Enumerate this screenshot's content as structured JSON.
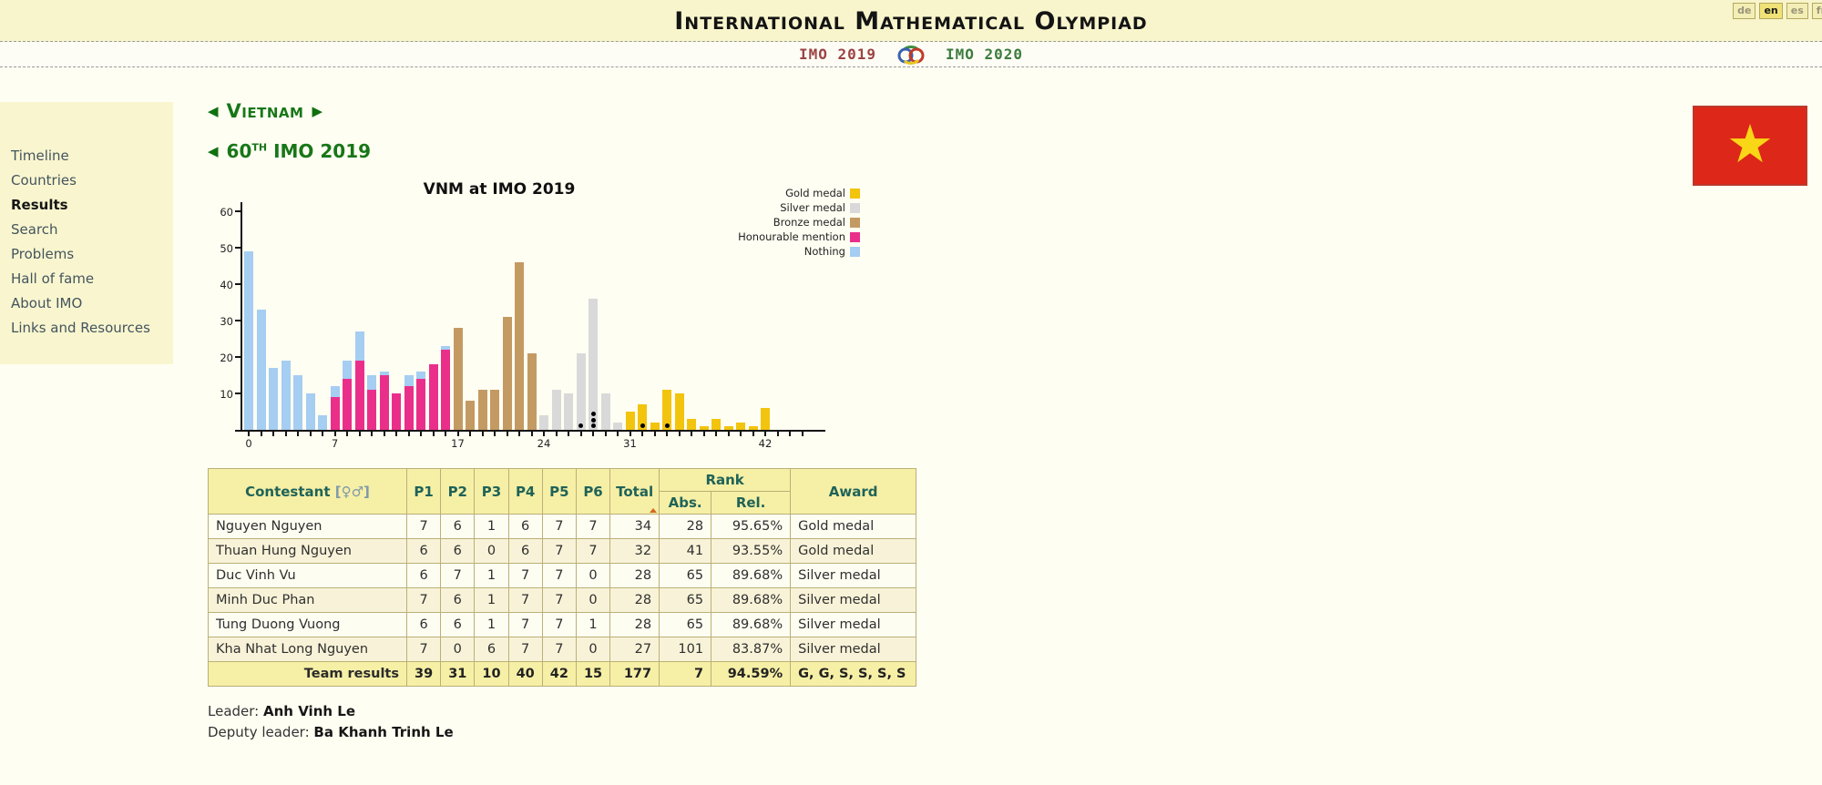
{
  "header": {
    "title": "International Mathematical Olympiad",
    "languages": [
      {
        "code": "de",
        "active": false
      },
      {
        "code": "en",
        "active": true
      },
      {
        "code": "es",
        "active": false
      },
      {
        "code": "fr",
        "active": false
      }
    ]
  },
  "nav": {
    "prev_label": "IMO 2019",
    "next_label": "IMO 2020"
  },
  "icons": {
    "prev_arrow": "◀",
    "next_arrow": "▶",
    "star": "★"
  },
  "sidebar": {
    "items": [
      {
        "label": "Timeline",
        "active": false
      },
      {
        "label": "Countries",
        "active": false
      },
      {
        "label": "Results",
        "active": true
      },
      {
        "label": "Search",
        "active": false
      },
      {
        "label": "Problems",
        "active": false
      },
      {
        "label": "Hall of fame",
        "active": false
      },
      {
        "label": "About IMO",
        "active": false
      },
      {
        "label": "Links and Resources",
        "active": false
      }
    ]
  },
  "content": {
    "country_heading": "Vietnam",
    "event_number": "60",
    "event_suffix": "TH",
    "event_rest": "IMO 2019",
    "leader_label": "Leader:",
    "leader_name": "Anh Vinh Le",
    "deputy_label": "Deputy leader:",
    "deputy_name": "Ba Khanh Trinh Le"
  },
  "flag": {
    "country": "Vietnam",
    "background": "#dd2718",
    "star_color": "#f9d616"
  },
  "colors": {
    "heading_green": "#177718",
    "nav_prev_red": "#9c4343",
    "nav_next_green": "#3c7c3c",
    "table_header_text": "#1f6358",
    "page_ivory": "#fffef2",
    "band_yellow": "#f8f5cc"
  },
  "chart_data": {
    "type": "bar",
    "title": "VNM at IMO 2019",
    "xlabel": "",
    "ylabel": "",
    "x_tick_labels": [
      0,
      7,
      17,
      24,
      31,
      42
    ],
    "y_tick_labels": [
      10,
      20,
      30,
      40,
      50,
      60
    ],
    "xlim": [
      0,
      45
    ],
    "ylim": [
      0,
      62
    ],
    "grid": false,
    "legend_position": "top-right",
    "legend": [
      {
        "key": "gold",
        "label": "Gold medal",
        "color": "#f2c40d"
      },
      {
        "key": "silver",
        "label": "Silver medal",
        "color": "#d9d9d9"
      },
      {
        "key": "bronze",
        "label": "Bronze medal",
        "color": "#c49a63"
      },
      {
        "key": "hm",
        "label": "Honourable mention",
        "color": "#ea2f8b"
      },
      {
        "key": "nothing",
        "label": "Nothing",
        "color": "#a6cdf2"
      }
    ],
    "bars": [
      {
        "score": 0,
        "segments": [
          {
            "key": "nothing",
            "value": 49
          }
        ]
      },
      {
        "score": 1,
        "segments": [
          {
            "key": "nothing",
            "value": 33
          }
        ]
      },
      {
        "score": 2,
        "segments": [
          {
            "key": "nothing",
            "value": 17
          }
        ]
      },
      {
        "score": 3,
        "segments": [
          {
            "key": "nothing",
            "value": 19
          }
        ]
      },
      {
        "score": 4,
        "segments": [
          {
            "key": "nothing",
            "value": 15
          }
        ]
      },
      {
        "score": 5,
        "segments": [
          {
            "key": "nothing",
            "value": 10
          }
        ]
      },
      {
        "score": 6,
        "segments": [
          {
            "key": "nothing",
            "value": 4
          }
        ]
      },
      {
        "score": 7,
        "segments": [
          {
            "key": "hm",
            "value": 9
          },
          {
            "key": "nothing",
            "value": 3
          }
        ]
      },
      {
        "score": 8,
        "segments": [
          {
            "key": "hm",
            "value": 14
          },
          {
            "key": "nothing",
            "value": 5
          }
        ]
      },
      {
        "score": 9,
        "segments": [
          {
            "key": "hm",
            "value": 19
          },
          {
            "key": "nothing",
            "value": 8
          }
        ]
      },
      {
        "score": 10,
        "segments": [
          {
            "key": "hm",
            "value": 11
          },
          {
            "key": "nothing",
            "value": 4
          }
        ]
      },
      {
        "score": 11,
        "segments": [
          {
            "key": "hm",
            "value": 15
          },
          {
            "key": "nothing",
            "value": 1
          }
        ]
      },
      {
        "score": 12,
        "segments": [
          {
            "key": "hm",
            "value": 10
          }
        ]
      },
      {
        "score": 13,
        "segments": [
          {
            "key": "hm",
            "value": 12
          },
          {
            "key": "nothing",
            "value": 3
          }
        ]
      },
      {
        "score": 14,
        "segments": [
          {
            "key": "hm",
            "value": 14
          },
          {
            "key": "nothing",
            "value": 2
          }
        ]
      },
      {
        "score": 15,
        "segments": [
          {
            "key": "hm",
            "value": 18
          }
        ]
      },
      {
        "score": 16,
        "segments": [
          {
            "key": "hm",
            "value": 22
          },
          {
            "key": "nothing",
            "value": 1
          }
        ]
      },
      {
        "score": 17,
        "segments": [
          {
            "key": "bronze",
            "value": 28
          }
        ]
      },
      {
        "score": 18,
        "segments": [
          {
            "key": "bronze",
            "value": 8
          }
        ]
      },
      {
        "score": 19,
        "segments": [
          {
            "key": "bronze",
            "value": 11
          }
        ]
      },
      {
        "score": 20,
        "segments": [
          {
            "key": "bronze",
            "value": 11
          }
        ]
      },
      {
        "score": 21,
        "segments": [
          {
            "key": "bronze",
            "value": 31
          }
        ]
      },
      {
        "score": 22,
        "segments": [
          {
            "key": "bronze",
            "value": 46
          }
        ]
      },
      {
        "score": 23,
        "segments": [
          {
            "key": "bronze",
            "value": 21
          }
        ]
      },
      {
        "score": 24,
        "segments": [
          {
            "key": "silver",
            "value": 4
          }
        ]
      },
      {
        "score": 25,
        "segments": [
          {
            "key": "silver",
            "value": 11
          }
        ]
      },
      {
        "score": 26,
        "segments": [
          {
            "key": "silver",
            "value": 10
          }
        ]
      },
      {
        "score": 27,
        "segments": [
          {
            "key": "silver",
            "value": 21
          }
        ]
      },
      {
        "score": 28,
        "segments": [
          {
            "key": "silver",
            "value": 36
          }
        ]
      },
      {
        "score": 29,
        "segments": [
          {
            "key": "silver",
            "value": 10
          }
        ]
      },
      {
        "score": 30,
        "segments": [
          {
            "key": "silver",
            "value": 2
          }
        ]
      },
      {
        "score": 31,
        "segments": [
          {
            "key": "gold",
            "value": 5
          }
        ]
      },
      {
        "score": 32,
        "segments": [
          {
            "key": "gold",
            "value": 7
          }
        ]
      },
      {
        "score": 33,
        "segments": [
          {
            "key": "gold",
            "value": 2
          }
        ]
      },
      {
        "score": 34,
        "segments": [
          {
            "key": "gold",
            "value": 11
          }
        ]
      },
      {
        "score": 35,
        "segments": [
          {
            "key": "gold",
            "value": 10
          }
        ]
      },
      {
        "score": 36,
        "segments": [
          {
            "key": "gold",
            "value": 3
          }
        ]
      },
      {
        "score": 37,
        "segments": [
          {
            "key": "gold",
            "value": 1
          }
        ]
      },
      {
        "score": 38,
        "segments": [
          {
            "key": "gold",
            "value": 3
          }
        ]
      },
      {
        "score": 39,
        "segments": [
          {
            "key": "gold",
            "value": 1
          }
        ]
      },
      {
        "score": 40,
        "segments": [
          {
            "key": "gold",
            "value": 2
          }
        ]
      },
      {
        "score": 41,
        "segments": [
          {
            "key": "gold",
            "value": 1
          }
        ]
      },
      {
        "score": 42,
        "segments": [
          {
            "key": "gold",
            "value": 6
          }
        ]
      }
    ],
    "team_score_dots": [
      {
        "score": 27,
        "count": 1
      },
      {
        "score": 28,
        "count": 3
      },
      {
        "score": 32,
        "count": 1
      },
      {
        "score": 34,
        "count": 1
      }
    ]
  },
  "table": {
    "header": {
      "contestant": "Contestant",
      "gender": "[♀♂]",
      "problems": [
        "P1",
        "P2",
        "P3",
        "P4",
        "P5",
        "P6"
      ],
      "total": "Total",
      "rank": "Rank",
      "abs": "Abs.",
      "rel": "Rel.",
      "award": "Award"
    },
    "rows": [
      {
        "name": "Nguyen Nguyen",
        "p": [
          7,
          6,
          1,
          6,
          7,
          7
        ],
        "total": 34,
        "abs": 28,
        "rel": "95.65%",
        "award": "Gold medal"
      },
      {
        "name": "Thuan Hung Nguyen",
        "p": [
          6,
          6,
          0,
          6,
          7,
          7
        ],
        "total": 32,
        "abs": 41,
        "rel": "93.55%",
        "award": "Gold medal"
      },
      {
        "name": "Duc Vinh Vu",
        "p": [
          6,
          7,
          1,
          7,
          7,
          0
        ],
        "total": 28,
        "abs": 65,
        "rel": "89.68%",
        "award": "Silver medal"
      },
      {
        "name": "Minh Duc Phan",
        "p": [
          7,
          6,
          1,
          7,
          7,
          0
        ],
        "total": 28,
        "abs": 65,
        "rel": "89.68%",
        "award": "Silver medal"
      },
      {
        "name": "Tung Duong Vuong",
        "p": [
          6,
          6,
          1,
          7,
          7,
          1
        ],
        "total": 28,
        "abs": 65,
        "rel": "89.68%",
        "award": "Silver medal"
      },
      {
        "name": "Kha Nhat Long Nguyen",
        "p": [
          7,
          0,
          6,
          7,
          7,
          0
        ],
        "total": 27,
        "abs": 101,
        "rel": "83.87%",
        "award": "Silver medal"
      }
    ],
    "team_row": {
      "label": "Team results",
      "p": [
        39,
        31,
        10,
        40,
        42,
        15
      ],
      "total": 177,
      "abs": 7,
      "rel": "94.59%",
      "award": "G, G, S, S, S, S"
    }
  }
}
